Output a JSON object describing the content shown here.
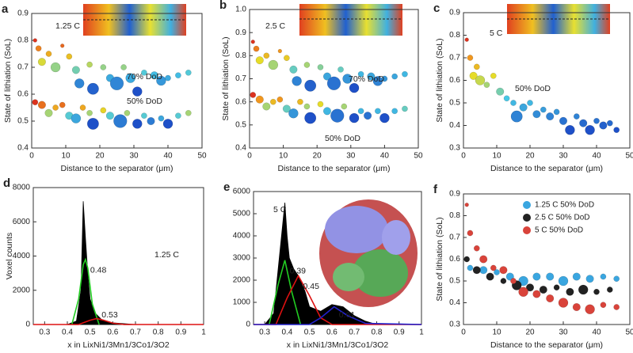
{
  "chart_data": [
    {
      "type": "scatter",
      "panel": "a",
      "rate": "1.25 C",
      "colormap": "jet",
      "x_label": "Distance to the separator (μm)",
      "y_label": "State of lithiation (SoL)",
      "xlim": [
        0,
        50
      ],
      "xticks": [
        0,
        10,
        20,
        30,
        40,
        50
      ],
      "ylim": [
        0.4,
        0.9
      ],
      "yticks": [
        0.4,
        0.5,
        0.6,
        0.7,
        0.8,
        0.9
      ],
      "series": [
        {
          "name": "70% DoD",
          "x": [
            1,
            2,
            3,
            5,
            7,
            9,
            11,
            13,
            14,
            17,
            18,
            21,
            23,
            25,
            27,
            29,
            31,
            33,
            36,
            38,
            40,
            43,
            46
          ],
          "y": [
            0.8,
            0.77,
            0.72,
            0.75,
            0.7,
            0.78,
            0.74,
            0.69,
            0.64,
            0.71,
            0.62,
            0.7,
            0.66,
            0.64,
            0.7,
            0.66,
            0.61,
            0.68,
            0.67,
            0.65,
            0.66,
            0.67,
            0.68
          ],
          "sizes": [
            2,
            3,
            4,
            3,
            5,
            2,
            3,
            4,
            5,
            3,
            6,
            3,
            4,
            7,
            3,
            5,
            5,
            3,
            4,
            5,
            3,
            3,
            3
          ]
        },
        {
          "name": "50% DoD",
          "x": [
            1,
            3,
            5,
            7,
            9,
            11,
            13,
            15,
            17,
            18,
            21,
            23,
            26,
            28,
            31,
            33,
            35,
            38,
            40,
            43,
            46
          ],
          "y": [
            0.57,
            0.56,
            0.53,
            0.55,
            0.56,
            0.52,
            0.51,
            0.55,
            0.53,
            0.49,
            0.54,
            0.52,
            0.5,
            0.53,
            0.49,
            0.52,
            0.5,
            0.51,
            0.49,
            0.52,
            0.53
          ],
          "sizes": [
            3,
            4,
            4,
            3,
            3,
            4,
            5,
            3,
            3,
            6,
            3,
            4,
            7,
            3,
            5,
            3,
            4,
            3,
            5,
            3,
            3
          ]
        }
      ]
    },
    {
      "type": "scatter",
      "panel": "b",
      "rate": "2.5 C",
      "colormap": "jet",
      "x_label": "Distance to the separator (μm)",
      "y_label": "State of lithiation (SoL)",
      "xlim": [
        0,
        50
      ],
      "xticks": [
        0,
        10,
        20,
        30,
        40,
        50
      ],
      "ylim": [
        0.4,
        1.0
      ],
      "yticks": [
        0.4,
        0.5,
        0.6,
        0.7,
        0.8,
        0.9,
        {
          "value": 1.0,
          "label": "1.0"
        }
      ],
      "series": [
        {
          "name": "70% DoD",
          "x": [
            1,
            2,
            3,
            5,
            7,
            9,
            11,
            13,
            14,
            17,
            18,
            21,
            23,
            25,
            27,
            29,
            31,
            33,
            36,
            38,
            40,
            43,
            46
          ],
          "y": [
            0.86,
            0.83,
            0.78,
            0.8,
            0.76,
            0.82,
            0.79,
            0.74,
            0.69,
            0.76,
            0.67,
            0.75,
            0.71,
            0.68,
            0.74,
            0.7,
            0.66,
            0.72,
            0.71,
            0.69,
            0.7,
            0.71,
            0.72
          ],
          "sizes": [
            2,
            3,
            4,
            3,
            5,
            2,
            3,
            4,
            5,
            3,
            6,
            3,
            4,
            7,
            3,
            5,
            5,
            3,
            4,
            5,
            3,
            3,
            3
          ]
        },
        {
          "name": "50% DoD",
          "x": [
            1,
            3,
            5,
            7,
            9,
            11,
            13,
            15,
            17,
            18,
            21,
            23,
            26,
            28,
            31,
            33,
            35,
            38,
            40,
            43,
            46
          ],
          "y": [
            0.63,
            0.61,
            0.58,
            0.6,
            0.61,
            0.57,
            0.55,
            0.6,
            0.58,
            0.53,
            0.59,
            0.56,
            0.54,
            0.58,
            0.53,
            0.56,
            0.54,
            0.56,
            0.53,
            0.56,
            0.57
          ],
          "sizes": [
            3,
            4,
            4,
            3,
            3,
            4,
            5,
            3,
            3,
            6,
            3,
            4,
            7,
            3,
            5,
            3,
            4,
            3,
            5,
            3,
            3
          ]
        }
      ]
    },
    {
      "type": "scatter",
      "panel": "c",
      "rate": "5 C",
      "colormap": "jet",
      "x_label": "Distance to the separator (μm)",
      "y_label": "State of lithiation (SoL)",
      "xlim": [
        0,
        50
      ],
      "xticks": [
        0,
        10,
        20,
        30,
        40,
        50
      ],
      "ylim": [
        0.3,
        0.9
      ],
      "yticks": [
        0.3,
        0.4,
        0.5,
        0.6,
        0.7,
        0.8,
        0.9
      ],
      "series": [
        {
          "name": "50% DoD",
          "x": [
            1,
            2,
            3,
            4,
            5,
            7,
            9,
            11,
            13,
            15,
            16,
            18,
            20,
            22,
            24,
            26,
            28,
            30,
            32,
            34,
            36,
            38,
            40,
            42,
            44,
            46
          ],
          "y": [
            0.78,
            0.7,
            0.62,
            0.66,
            0.6,
            0.58,
            0.62,
            0.55,
            0.52,
            0.5,
            0.44,
            0.48,
            0.5,
            0.45,
            0.47,
            0.44,
            0.46,
            0.42,
            0.38,
            0.44,
            0.41,
            0.38,
            0.42,
            0.4,
            0.41,
            0.38
          ],
          "sizes": [
            2,
            3,
            4,
            3,
            5,
            3,
            3,
            4,
            3,
            3,
            6,
            4,
            3,
            4,
            3,
            4,
            3,
            4,
            5,
            3,
            4,
            5,
            3,
            4,
            3,
            3
          ]
        }
      ]
    },
    {
      "type": "line",
      "panel": "d",
      "rate": "1.25 C",
      "x_label": "x in LixNi1/3Mn1/3Co1/3O2",
      "y_label": "Voxel counts",
      "xlim": [
        0.25,
        1
      ],
      "xticks": [
        0.3,
        0.4,
        0.5,
        0.6,
        0.7,
        0.8,
        0.9,
        1
      ],
      "ylim": [
        0,
        8000
      ],
      "yticks": [
        0,
        2000,
        4000,
        6000,
        8000
      ],
      "series": [
        {
          "color": "#000000",
          "fill": true,
          "x": [
            0.4,
            0.44,
            0.46,
            0.47,
            0.48,
            0.49,
            0.5,
            0.52,
            0.55,
            0.6,
            0.7
          ],
          "y": [
            0,
            200,
            2000,
            7200,
            5000,
            3000,
            1500,
            700,
            300,
            100,
            0
          ]
        },
        {
          "color": "#22cc22",
          "peak": 0.48,
          "x": [
            0.42,
            0.45,
            0.47,
            0.48,
            0.49,
            0.51,
            0.54
          ],
          "y": [
            0,
            1500,
            3500,
            3800,
            3300,
            1200,
            0
          ]
        },
        {
          "color": "#dd1111",
          "peak": 0.53,
          "x": [
            0.25,
            0.45,
            0.5,
            0.53,
            0.56,
            0.6,
            0.65,
            1
          ],
          "y": [
            0,
            0,
            250,
            350,
            250,
            80,
            0,
            0
          ]
        }
      ]
    },
    {
      "type": "line",
      "panel": "e",
      "rate": "5 C",
      "x_label": "x in LixNi1/3Mn1/3Co1/3O2",
      "xlim": [
        0.25,
        1
      ],
      "xticks": [
        0.3,
        0.4,
        0.5,
        0.6,
        0.7,
        0.8,
        0.9,
        1
      ],
      "ylim": [
        0,
        6000
      ],
      "yticks": [
        0,
        1000,
        2000,
        3000,
        4000,
        5000,
        6000
      ],
      "series": [
        {
          "color": "#000000",
          "fill": true,
          "x": [
            0.3,
            0.34,
            0.36,
            0.38,
            0.39,
            0.4,
            0.41,
            0.43,
            0.45,
            0.48,
            0.5,
            0.55,
            0.6,
            0.65,
            0.7,
            0.75,
            0.8
          ],
          "y": [
            0,
            500,
            2500,
            4500,
            5500,
            4000,
            3000,
            2500,
            2200,
            1500,
            800,
            600,
            900,
            800,
            400,
            150,
            0
          ]
        },
        {
          "color": "#22cc22",
          "peak": 0.39,
          "x": [
            0.32,
            0.36,
            0.39,
            0.42,
            0.46
          ],
          "y": [
            0,
            1800,
            2900,
            1500,
            0
          ]
        },
        {
          "color": "#dd1111",
          "peak": 0.45,
          "x": [
            0.25,
            0.35,
            0.4,
            0.45,
            0.5,
            0.55,
            0.6,
            1
          ],
          "y": [
            0,
            0,
            1200,
            2200,
            1300,
            300,
            0,
            0
          ]
        },
        {
          "color": "#2222cc",
          "peak": 0.61,
          "x": [
            0.25,
            0.5,
            0.55,
            0.61,
            0.67,
            0.75,
            1
          ],
          "y": [
            0,
            0,
            300,
            800,
            400,
            50,
            0
          ]
        }
      ]
    },
    {
      "type": "scatter",
      "panel": "f",
      "legend": "upper right",
      "x_label": "Distance to the separator (μm)",
      "y_label": "State of lithiation (SoL)",
      "xlim": [
        0,
        50
      ],
      "xticks": [
        0,
        10,
        20,
        30,
        40,
        50
      ],
      "ylim": [
        0.3,
        0.9
      ],
      "yticks": [
        0.3,
        0.4,
        0.5,
        0.6,
        0.7,
        0.8,
        0.9
      ],
      "series": [
        {
          "name": "1.25 C 50% DoD",
          "color": "#3aa6e0",
          "x": [
            2,
            6,
            10,
            14,
            18,
            22,
            26,
            30,
            34,
            38,
            42,
            46
          ],
          "y": [
            0.56,
            0.55,
            0.54,
            0.52,
            0.5,
            0.52,
            0.52,
            0.5,
            0.52,
            0.51,
            0.52,
            0.51
          ],
          "sizes": [
            3,
            4,
            3,
            4,
            5,
            4,
            4,
            5,
            4,
            4,
            3,
            3
          ]
        },
        {
          "name": "2.5 C  50% DoD",
          "color": "#222222",
          "x": [
            1,
            4,
            8,
            12,
            16,
            20,
            24,
            28,
            32,
            36,
            40,
            44
          ],
          "y": [
            0.6,
            0.55,
            0.52,
            0.5,
            0.48,
            0.47,
            0.46,
            0.47,
            0.45,
            0.46,
            0.45,
            0.46
          ],
          "sizes": [
            3,
            4,
            4,
            3,
            5,
            4,
            4,
            3,
            4,
            5,
            3,
            3
          ]
        },
        {
          "name": "5 C     50% DoD",
          "color": "#d9433a",
          "x": [
            1,
            2,
            4,
            6,
            9,
            12,
            15,
            18,
            22,
            26,
            30,
            34,
            38,
            42,
            46
          ],
          "y": [
            0.85,
            0.72,
            0.65,
            0.6,
            0.56,
            0.55,
            0.5,
            0.45,
            0.44,
            0.42,
            0.4,
            0.38,
            0.37,
            0.39,
            0.38
          ],
          "sizes": [
            2,
            3,
            3,
            4,
            3,
            4,
            3,
            5,
            4,
            4,
            5,
            4,
            5,
            3,
            3
          ]
        }
      ]
    }
  ]
}
